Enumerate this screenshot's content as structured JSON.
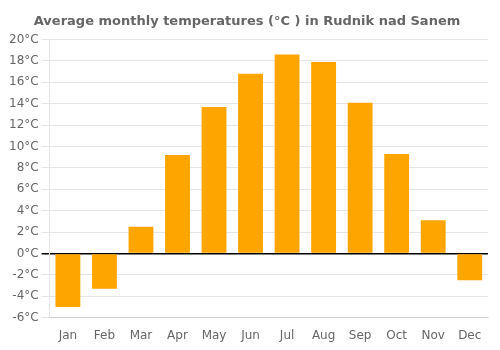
{
  "chart_data": {
    "type": "bar",
    "title": "Average monthly temperatures (°C ) in Rudnik nad Sanem",
    "categories": [
      "Jan",
      "Feb",
      "Mar",
      "Apr",
      "May",
      "Jun",
      "Jul",
      "Aug",
      "Sep",
      "Oct",
      "Nov",
      "Dec"
    ],
    "values": [
      -5.0,
      -3.3,
      2.5,
      9.2,
      13.7,
      16.8,
      18.6,
      17.9,
      14.1,
      9.3,
      3.1,
      -2.5
    ],
    "color": "#FFA500",
    "ylim": [
      -6,
      20
    ],
    "yticks": [
      {
        "value": -6,
        "label": "-6°C"
      },
      {
        "value": -4,
        "label": "-4°C"
      },
      {
        "value": -2,
        "label": "-2°C"
      },
      {
        "value": 0,
        "label": "0°C"
      },
      {
        "value": 2,
        "label": "2°C"
      },
      {
        "value": 4,
        "label": "4°C"
      },
      {
        "value": 6,
        "label": "6°C"
      },
      {
        "value": 8,
        "label": "8°C"
      },
      {
        "value": 10,
        "label": "10°C"
      },
      {
        "value": 12,
        "label": "12°C"
      },
      {
        "value": 14,
        "label": "14°C"
      },
      {
        "value": 16,
        "label": "16°C"
      },
      {
        "value": 18,
        "label": "18°C"
      },
      {
        "value": 20,
        "label": "20°C"
      }
    ],
    "grid": true
  }
}
